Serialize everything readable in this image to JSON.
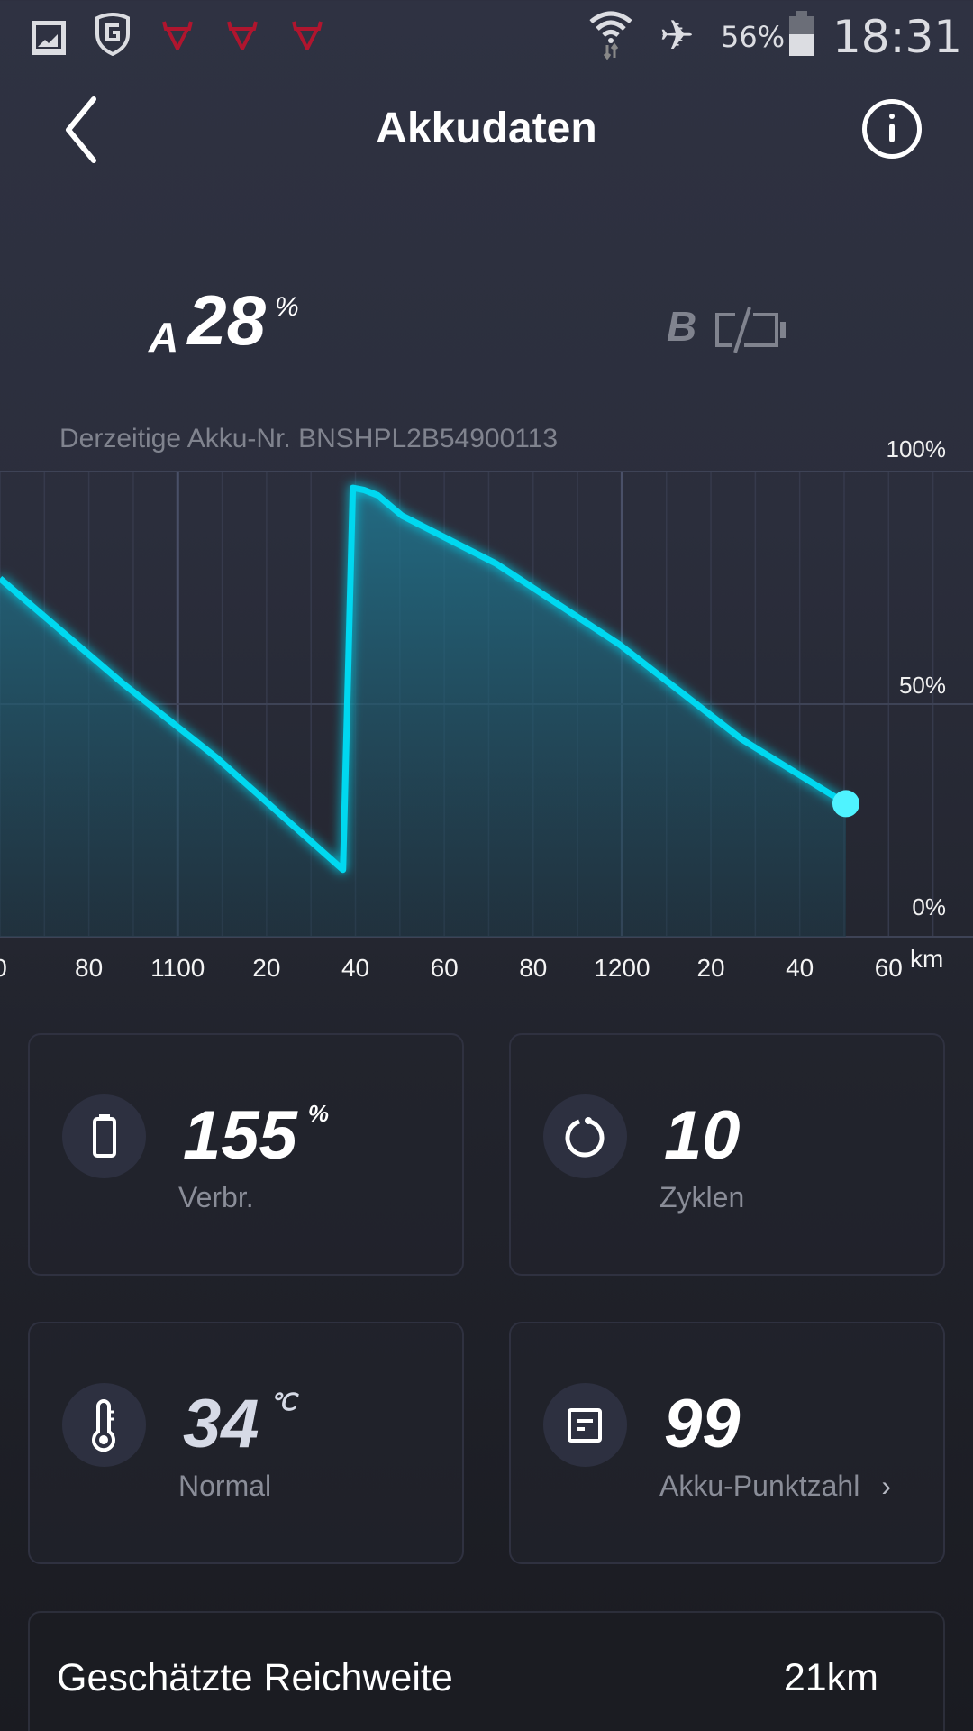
{
  "status_bar": {
    "icons": [
      "gallery-icon",
      "shield-g-icon",
      "bull-icon",
      "bull-icon",
      "bull-icon",
      "wifi-icon",
      "airplane-icon",
      "battery-icon"
    ],
    "battery": "56%",
    "time": "18:31"
  },
  "header": {
    "title": "Akkudaten",
    "back_icon": "chevron-left-icon",
    "info_icon": "info-icon"
  },
  "batteries": {
    "a": {
      "label": "A",
      "value": "28",
      "unit": "%"
    },
    "b": {
      "label": "B",
      "icon": "battery-missing-icon"
    }
  },
  "current_battery": "Derzeitige Akku-Nr. BNSHPL2B54900113",
  "chart_data": {
    "type": "area",
    "x_unit": "km",
    "xlim": [
      1060,
      1279
    ],
    "ylim": [
      0,
      100
    ],
    "y_ticks": [
      "100%",
      "50%",
      "0%"
    ],
    "y_tick_values": [
      100,
      50,
      0
    ],
    "x_ticks": [
      "0",
      "80",
      "1100",
      "20",
      "40",
      "60",
      "80",
      "1200",
      "20",
      "40",
      "60"
    ],
    "x_tick_values": [
      1060,
      1080,
      1100,
      1120,
      1140,
      1160,
      1180,
      1200,
      1220,
      1240,
      1260
    ],
    "grid": true,
    "line_color": "#00d8f0",
    "x": [
      1060,
      1087.8,
      1108.7,
      1137.2,
      1139.4,
      1142,
      1145,
      1150.5,
      1171.5,
      1199.3,
      1227,
      1250.4
    ],
    "y": [
      77,
      54.3,
      38.5,
      14.4,
      96.5,
      96,
      94.9,
      90.5,
      80.3,
      62.9,
      42.4,
      28.6
    ]
  },
  "stats": [
    {
      "icon": "battery-icon",
      "value": "155",
      "unit": "%",
      "label": "Verbr."
    },
    {
      "icon": "cycle-icon",
      "value": "10",
      "unit": "",
      "label": "Zyklen"
    },
    {
      "icon": "thermometer-icon",
      "value": "34",
      "unit": "℃",
      "label": "Normal"
    },
    {
      "icon": "score-icon",
      "value": "99",
      "unit": "",
      "label": "Akku-Punktzahl"
    }
  ],
  "range": {
    "label": "Geschätzte Reichweite",
    "value": "21km"
  }
}
